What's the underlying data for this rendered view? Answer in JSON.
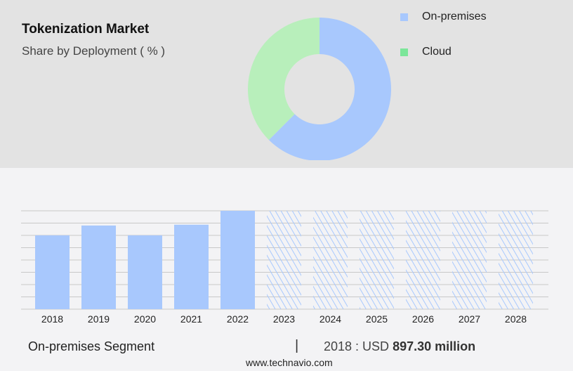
{
  "header": {
    "title": "Tokenization Market",
    "subtitle": "Share by Deployment ( % )"
  },
  "chart_data": [
    {
      "type": "pie",
      "variant": "donut",
      "title": "Tokenization Market",
      "subtitle": "Share by Deployment ( % )",
      "slices": [
        {
          "name": "On-premises",
          "value": 62.5,
          "color": "#a8c8fd"
        },
        {
          "name": "Cloud",
          "value": 37.5,
          "color": "#b8efbb"
        }
      ],
      "legend": {
        "placement": "top-right",
        "items": [
          {
            "label": "On-premises",
            "color": "#a8c8fd"
          },
          {
            "label": "Cloud",
            "color": "#7ce69a"
          }
        ]
      }
    },
    {
      "type": "bar",
      "categories": [
        "2018",
        "2019",
        "2020",
        "2021",
        "2022",
        "2023",
        "2024",
        "2025",
        "2026",
        "2027",
        "2028"
      ],
      "values": [
        897.3,
        1017,
        897.3,
        1027,
        1196,
        null,
        null,
        null,
        null,
        null,
        null
      ],
      "forecast_categories": [
        "2023",
        "2024",
        "2025",
        "2026",
        "2027",
        "2028"
      ],
      "ylim": [
        0,
        1196
      ],
      "grid": true,
      "color": "#a8c8fd",
      "unit": "USD million"
    }
  ],
  "footer": {
    "segment": "On-premises Segment",
    "separator": "|",
    "year_label": "2018 : USD ",
    "value": "897.30 million",
    "site": "www.technavio.com"
  }
}
